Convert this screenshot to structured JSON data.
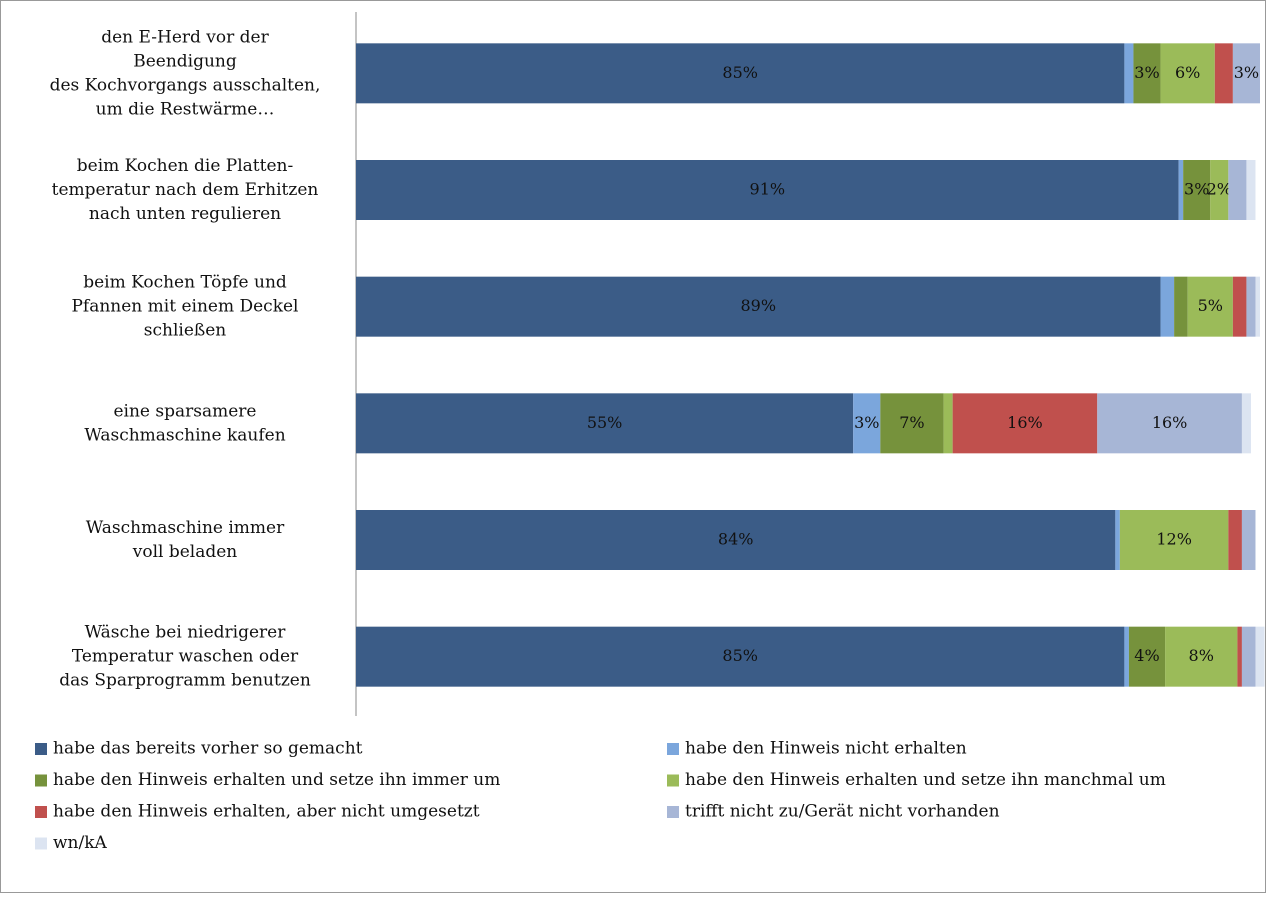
{
  "chart_data": {
    "type": "stacked-bar-horizontal",
    "categories": [
      "den E-Herd vor der\nBeendigung\ndes Kochvorgangs ausschalten,\num die Restwärme…",
      "beim Kochen die Platten-\ntemperatur nach dem Erhitzen\nnach unten regulieren",
      "beim Kochen Töpfe und\nPfannen mit einem Deckel\nschließen",
      "eine sparsamere\nWaschmaschine kaufen",
      "Waschmaschine immer\nvoll beladen",
      "Wäsche bei niedrigerer\nTemperatur waschen oder\ndas Sparprogramm benutzen"
    ],
    "xlim": [
      0,
      100
    ],
    "series": [
      {
        "name": "habe das bereits vorher so gemacht",
        "color": "#3b5c87",
        "values": [
          85,
          91,
          89,
          55,
          84,
          85
        ],
        "value_labels": [
          "85%",
          "91%",
          "89%",
          "55%",
          "84%",
          "85%"
        ]
      },
      {
        "name": "habe den Hinweis nicht erhalten",
        "color": "#7ba6dc",
        "values": [
          1,
          0.5,
          1.5,
          3,
          0.5,
          0.5
        ],
        "value_labels": [
          null,
          null,
          null,
          "3%",
          null,
          null
        ]
      },
      {
        "name": "habe den Hinweis erhalten und setze ihn immer um",
        "color": "#76923c",
        "values": [
          3,
          3,
          1.5,
          7,
          0,
          4
        ],
        "value_labels": [
          "3%",
          "3%",
          null,
          "7%",
          null,
          "4%"
        ]
      },
      {
        "name": "habe den Hinweis erhalten und setze ihn manchmal um",
        "color": "#9bbb59",
        "values": [
          6,
          2,
          5,
          1,
          12,
          8
        ],
        "value_labels": [
          "6%",
          "2%",
          "5%",
          null,
          "12%",
          "8%"
        ]
      },
      {
        "name": "habe den Hinweis erhalten, aber nicht umgesetzt",
        "color": "#c0504d",
        "values": [
          2,
          0,
          1.5,
          16,
          1.5,
          0.5
        ],
        "value_labels": [
          null,
          null,
          null,
          "16%",
          null,
          null
        ]
      },
      {
        "name": "trifft nicht zu/Gerät nicht vorhanden",
        "color": "#a7b6d6",
        "values": [
          3,
          2,
          1,
          16,
          1.5,
          1.5
        ],
        "value_labels": [
          "3%",
          null,
          null,
          "16%",
          null,
          null
        ]
      },
      {
        "name": "wn/kA",
        "color": "#dce4f1",
        "values": [
          0,
          1,
          0.5,
          1,
          0,
          1
        ],
        "value_labels": [
          null,
          null,
          null,
          null,
          null,
          null
        ]
      }
    ]
  }
}
